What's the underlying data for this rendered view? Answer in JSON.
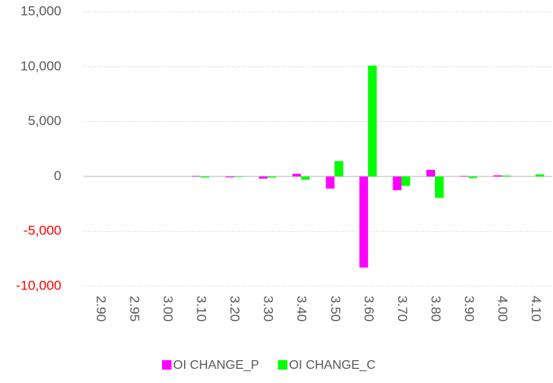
{
  "chart_data": {
    "type": "bar",
    "categories": [
      "2.90",
      "2.95",
      "3.00",
      "3.10",
      "3.20",
      "3.30",
      "3.40",
      "3.50",
      "3.60",
      "3.70",
      "3.80",
      "3.90",
      "4.00",
      "4.10"
    ],
    "series": [
      {
        "name": "OI CHANGE_P",
        "color": "#ff00ff",
        "values": [
          0,
          0,
          0,
          50,
          -80,
          -200,
          250,
          -1100,
          -8300,
          -1250,
          600,
          50,
          100,
          0
        ]
      },
      {
        "name": "OI CHANGE_C",
        "color": "#00ff00",
        "values": [
          0,
          0,
          0,
          -100,
          -50,
          -100,
          -300,
          1400,
          10100,
          -850,
          -1950,
          -150,
          80,
          200
        ]
      }
    ],
    "ylim": [
      -10000,
      15000
    ],
    "yticks": [
      {
        "value": -10000,
        "label": "-10,000"
      },
      {
        "value": -5000,
        "label": "-5,000"
      },
      0,
      {
        "value": 5000,
        "label": "5,000"
      },
      {
        "value": 10000,
        "label": "10,000"
      },
      {
        "value": 15000,
        "label": "15,000"
      }
    ],
    "negative_tick_color": "#ff0000",
    "grid": true,
    "legend": "bottom"
  }
}
